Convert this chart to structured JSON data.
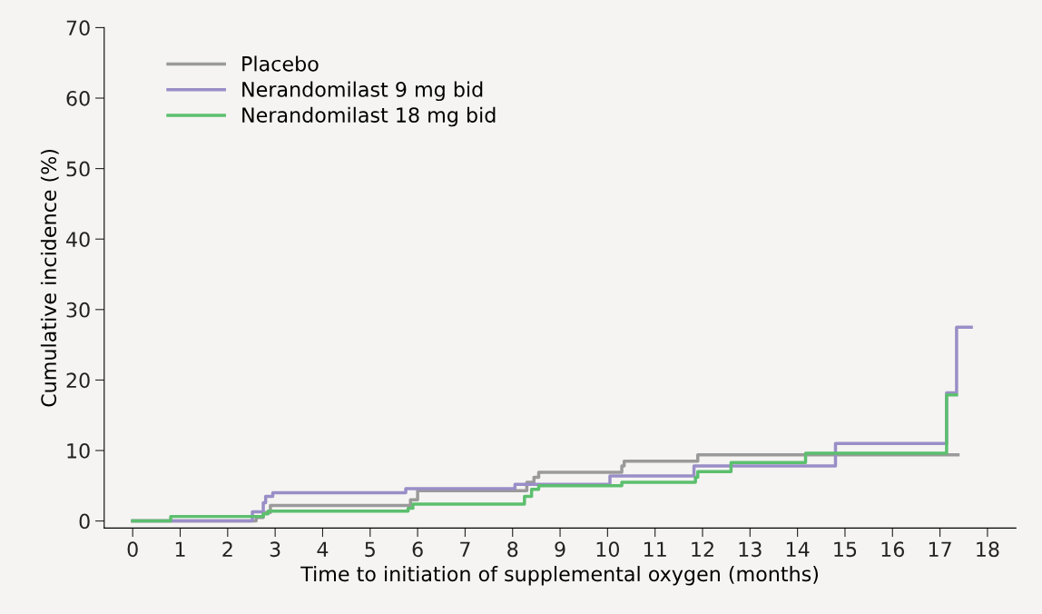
{
  "chart_data": {
    "type": "step",
    "xlabel": "Time to initiation of supplemental oxygen (months)",
    "ylabel": "Cumulative incidence (%)",
    "xlim": [
      -0.6,
      18.6
    ],
    "ylim": [
      -1,
      70
    ],
    "xticks": [
      0,
      1,
      2,
      3,
      4,
      5,
      6,
      7,
      8,
      9,
      10,
      11,
      12,
      13,
      14,
      15,
      16,
      17,
      18
    ],
    "yticks": [
      0,
      10,
      20,
      30,
      40,
      50,
      60,
      70
    ],
    "legend": "top left",
    "grid": false,
    "series": [
      {
        "name": "Placebo",
        "color": "#9a9a9a",
        "x": [
          0,
          2.6,
          2.75,
          2.9,
          5.85,
          6.0,
          8.3,
          8.45,
          8.55,
          10.3,
          10.35,
          11.9,
          17.38
        ],
        "values": [
          0,
          0.5,
          1.2,
          2.2,
          3.0,
          4.3,
          5.5,
          6.2,
          6.9,
          7.8,
          8.5,
          9.4,
          9.4
        ]
      },
      {
        "name": "Nerandomilast 9 mg bid",
        "color": "#9a8ec7",
        "x": [
          0,
          2.52,
          2.75,
          2.8,
          2.95,
          5.75,
          8.05,
          10.05,
          11.82,
          14.8,
          17.14,
          17.35,
          17.66
        ],
        "values": [
          0,
          1.3,
          2.6,
          3.5,
          4.0,
          4.6,
          5.2,
          6.4,
          7.8,
          11.0,
          18.2,
          27.5,
          27.5
        ]
      },
      {
        "name": "Nerandomilast 18 mg bid",
        "color": "#5cbf6e",
        "x": [
          0,
          0.8,
          2.75,
          2.85,
          5.8,
          5.9,
          8.25,
          8.4,
          8.55,
          10.3,
          11.85,
          11.9,
          12.6,
          14.17,
          17.14,
          17.35
        ],
        "values": [
          0,
          0.64,
          1.0,
          1.4,
          1.8,
          2.4,
          3.5,
          4.5,
          5.0,
          5.5,
          6.2,
          7.0,
          8.3,
          9.6,
          17.9,
          17.9
        ]
      }
    ]
  }
}
